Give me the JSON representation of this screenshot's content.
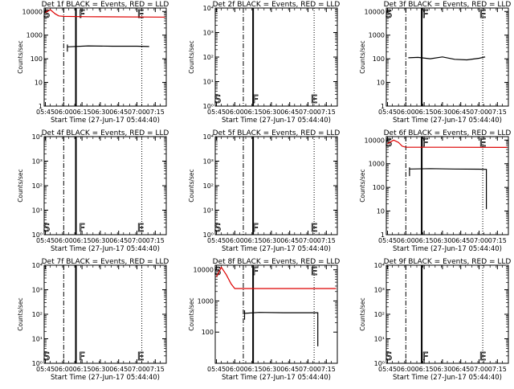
{
  "figure": {
    "colors": {
      "events": "#000000",
      "lld": "#dd0000",
      "frame": "#000000"
    }
  },
  "chart_data": [
    {
      "type": "line",
      "title": "Det 1f BLACK = Events, RED = LLD",
      "xlabel": "Start Time (27-Jun-17 05:44:40)",
      "ylabel": "Counts/sec",
      "x_tick_labels": [
        "05:45",
        "06:00",
        "06:15",
        "06:30",
        "06:45",
        "07:00",
        "07:15"
      ],
      "y_tick_labels": [
        "1",
        "10",
        "100",
        "1000",
        "10000"
      ],
      "log_y": true,
      "xlim": [
        "05:44",
        "07:24"
      ],
      "ylim": [
        1,
        14000
      ],
      "markers": {
        "S": "05:46",
        "F": "06:15",
        "E": "07:03",
        "dashdot_at": "06:00",
        "solid_at": "06:10",
        "dotted_at": "07:04"
      },
      "series": [
        {
          "name": "LLD",
          "color": "#dd0000",
          "x": [
            "05:45",
            "05:49",
            "05:53",
            "05:56",
            "06:00",
            "06:20",
            "07:23"
          ],
          "y": [
            9000,
            12000,
            8000,
            6500,
            6200,
            6000,
            5800
          ]
        },
        {
          "name": "Events",
          "color": "#000000",
          "x": [
            "06:03",
            "06:03",
            "06:03",
            "06:20",
            "06:40",
            "07:00",
            "07:10"
          ],
          "y": [
            200,
            400,
            320,
            350,
            340,
            340,
            330
          ]
        }
      ]
    },
    {
      "type": "line",
      "title": "Det 2f BLACK = Events, RED = LLD",
      "xlabel": "Start Time (27-Jun-17 05:44:40)",
      "ylabel": "Counts/sec",
      "x_tick_labels": [
        "05:45",
        "06:00",
        "06:15",
        "06:30",
        "06:45",
        "07:00",
        "07:15"
      ],
      "y_tick_labels": [
        "10⁰",
        "10¹",
        "10²",
        "10³",
        "10⁴"
      ],
      "log_y": true,
      "xlim": [
        "05:44",
        "07:24"
      ],
      "ylim": [
        1,
        10000
      ],
      "markers": {
        "S": "05:46",
        "F": "06:17",
        "E": "07:05",
        "dashdot_at": "06:07",
        "solid_at": "06:15",
        "dotted_at": "07:05"
      },
      "series": []
    },
    {
      "type": "line",
      "title": "Det 3f BLACK = Events, RED = LLD",
      "xlabel": "Start Time (27-Jun-17 05:44:40)",
      "ylabel": "Counts/sec",
      "x_tick_labels": [
        "05:45",
        "06:00",
        "06:15",
        "06:30",
        "06:45",
        "07:00",
        "07:15"
      ],
      "y_tick_labels": [
        "1",
        "10",
        "100",
        "1000",
        "10000"
      ],
      "log_y": true,
      "xlim": [
        "05:44",
        "07:24"
      ],
      "ylim": [
        1,
        14000
      ],
      "markers": {
        "S": "05:46",
        "F": "06:16",
        "E": "07:03",
        "dashdot_at": "06:00",
        "solid_at": "06:13",
        "dotted_at": "07:03"
      },
      "series": [
        {
          "name": "Events",
          "color": "#000000",
          "x": [
            "06:02",
            "06:10",
            "06:20",
            "06:30",
            "06:40",
            "06:50",
            "07:00",
            "07:05"
          ],
          "y": [
            110,
            115,
            100,
            120,
            95,
            90,
            105,
            120
          ]
        }
      ]
    },
    {
      "type": "line",
      "title": "Det 4f BLACK = Events, RED = LLD",
      "xlabel": "Start Time (27-Jun-17 05:44:40)",
      "ylabel": "Counts/sec",
      "x_tick_labels": [
        "05:45",
        "06:00",
        "06:15",
        "06:30",
        "06:45",
        "07:00",
        "07:15"
      ],
      "y_tick_labels": [
        "10⁰",
        "10¹",
        "10²",
        "10³",
        "10⁴"
      ],
      "log_y": true,
      "xlim": [
        "05:44",
        "07:24"
      ],
      "ylim": [
        1,
        10000
      ],
      "markers": {
        "S": "05:46",
        "F": "06:15",
        "E": "07:03",
        "dashdot_at": "06:00",
        "solid_at": "06:10",
        "dotted_at": "07:04"
      },
      "series": []
    },
    {
      "type": "line",
      "title": "Det 5f BLACK = Events, RED = LLD",
      "xlabel": "Start Time (27-Jun-17 05:44:40)",
      "ylabel": "Counts/sec",
      "x_tick_labels": [
        "05:45",
        "06:00",
        "06:15",
        "06:30",
        "06:45",
        "07:00",
        "07:15"
      ],
      "y_tick_labels": [
        "10⁰",
        "10¹",
        "10²",
        "10³",
        "10⁴"
      ],
      "log_y": true,
      "xlim": [
        "05:44",
        "07:24"
      ],
      "ylim": [
        1,
        10000
      ],
      "markers": {
        "S": "05:46",
        "F": "06:17",
        "E": "07:05",
        "dashdot_at": "06:07",
        "solid_at": "06:15",
        "dotted_at": "07:05"
      },
      "series": []
    },
    {
      "type": "line",
      "title": "Det 6f BLACK = Events, RED = LLD",
      "xlabel": "Start Time (27-Jun-17 05:44:40)",
      "ylabel": "Counts/sec",
      "x_tick_labels": [
        "05:45",
        "06:00",
        "06:15",
        "06:30",
        "06:45",
        "07:00",
        "07:15"
      ],
      "y_tick_labels": [
        "1",
        "10",
        "100",
        "1000",
        "10000"
      ],
      "log_y": true,
      "xlim": [
        "05:44",
        "07:24"
      ],
      "ylim": [
        1,
        14000
      ],
      "markers": {
        "S": "05:46",
        "F": "06:16",
        "E": "07:03",
        "dashdot_at": "06:00",
        "solid_at": "06:13",
        "dotted_at": "07:03"
      },
      "series": [
        {
          "name": "LLD",
          "color": "#dd0000",
          "x": [
            "05:45",
            "05:50",
            "05:54",
            "05:57",
            "06:00",
            "06:30",
            "07:23"
          ],
          "y": [
            7000,
            10000,
            8000,
            5500,
            5000,
            5000,
            4900
          ]
        },
        {
          "name": "Events",
          "color": "#000000",
          "x": [
            "06:03",
            "06:03",
            "06:03",
            "06:20",
            "06:40",
            "07:00",
            "07:05",
            "07:06",
            "07:06"
          ],
          "y": [
            300,
            700,
            600,
            620,
            600,
            590,
            580,
            580,
            12
          ]
        }
      ]
    },
    {
      "type": "line",
      "title": "Det 7f BLACK = Events, RED = LLD",
      "xlabel": "Start Time (27-Jun-17 05:44:40)",
      "ylabel": "Counts/sec",
      "x_tick_labels": [
        "05:45",
        "06:00",
        "06:15",
        "06:30",
        "06:45",
        "07:00",
        "07:15"
      ],
      "y_tick_labels": [
        "10⁰",
        "10¹",
        "10²",
        "10³",
        "10⁴"
      ],
      "log_y": true,
      "xlim": [
        "05:44",
        "07:24"
      ],
      "ylim": [
        1,
        10000
      ],
      "markers": {
        "S": "05:46",
        "F": "06:15",
        "E": "07:03",
        "dashdot_at": "06:00",
        "solid_at": "06:10",
        "dotted_at": "07:04"
      },
      "series": []
    },
    {
      "type": "line",
      "title": "Det 8f BLACK = Events, RED = LLD",
      "xlabel": "Start Time (27-Jun-17 05:44:40)",
      "ylabel": "Counts/sec",
      "x_tick_labels": [
        "05:45",
        "06:00",
        "06:15",
        "06:30",
        "06:45",
        "07:00",
        "07:15"
      ],
      "y_tick_labels": [
        "100",
        "1000",
        "10000"
      ],
      "y_tick_values": [
        100,
        1000,
        10000
      ],
      "log_y": true,
      "xlim": [
        "05:44",
        "07:24"
      ],
      "ylim": [
        10,
        14000
      ],
      "markers": {
        "S": "05:46",
        "F": "06:17",
        "E": "07:05",
        "dashdot_at": "06:07",
        "solid_at": "06:15",
        "dotted_at": "07:05"
      },
      "series": [
        {
          "name": "LLD",
          "color": "#dd0000",
          "x": [
            "05:45",
            "05:49",
            "05:53",
            "05:57",
            "06:00",
            "06:30",
            "07:23"
          ],
          "y": [
            6000,
            12000,
            7000,
            3500,
            2500,
            2500,
            2500
          ]
        },
        {
          "name": "Events",
          "color": "#000000",
          "x": [
            "06:08",
            "06:08",
            "06:08",
            "06:20",
            "06:40",
            "07:00",
            "07:07",
            "07:08",
            "07:08"
          ],
          "y": [
            250,
            500,
            400,
            430,
            420,
            420,
            420,
            420,
            35
          ]
        }
      ]
    },
    {
      "type": "line",
      "title": "Det 9f BLACK = Events, RED = LLD",
      "xlabel": "Start Time (27-Jun-17 05:44:40)",
      "ylabel": "Counts/sec",
      "x_tick_labels": [
        "05:45",
        "06:00",
        "06:15",
        "06:30",
        "06:45",
        "07:00",
        "07:15"
      ],
      "y_tick_labels": [
        "10⁰",
        "10¹",
        "10²",
        "10³",
        "10⁴"
      ],
      "log_y": true,
      "xlim": [
        "05:44",
        "07:24"
      ],
      "ylim": [
        1,
        10000
      ],
      "markers": {
        "S": "05:46",
        "F": "06:16",
        "E": "07:03",
        "dashdot_at": "06:00",
        "solid_at": "06:13",
        "dotted_at": "07:03"
      },
      "series": []
    }
  ]
}
